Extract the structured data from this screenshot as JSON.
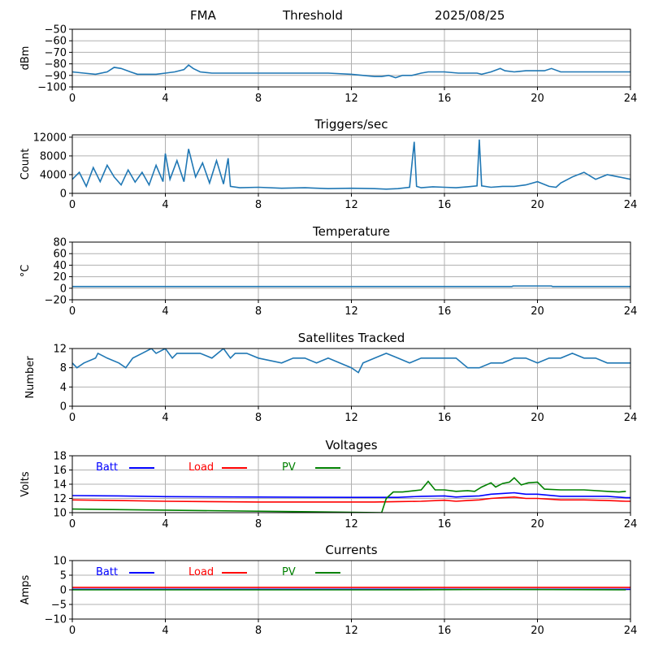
{
  "header": {
    "station": "FMA",
    "mode": "Threshold",
    "date": "2025/08/25"
  },
  "colors": {
    "trace": "#1f77b4",
    "grid": "#b0b0b0",
    "batt": "#0000ff",
    "load": "#ff0000",
    "pv": "#008000"
  },
  "chart_data": [
    {
      "type": "line",
      "title": "",
      "ylabel": "dBm",
      "xlim": [
        0,
        24
      ],
      "xticks": [
        0,
        4,
        8,
        12,
        16,
        20,
        24
      ],
      "ylim": [
        -100,
        -50
      ],
      "yticks": [
        -100,
        -90,
        -80,
        -70,
        -60,
        -50
      ],
      "grid": true,
      "series": [
        {
          "x": [
            0,
            0.5,
            1,
            1.5,
            1.8,
            2.1,
            2.5,
            2.8,
            3.2,
            3.6,
            4,
            4.4,
            4.8,
            5,
            5.2,
            5.5,
            6,
            7,
            8,
            9,
            10,
            11,
            12,
            12.5,
            13,
            13.3,
            13.6,
            13.9,
            14.2,
            14.6,
            15,
            15.3,
            16,
            16.6,
            17,
            17.4,
            17.6,
            18,
            18.4,
            18.6,
            19,
            19.5,
            20,
            20.3,
            20.6,
            21,
            22,
            23,
            24
          ],
          "y": [
            -87,
            -88,
            -89,
            -87,
            -83,
            -84,
            -87,
            -89,
            -89,
            -89,
            -88,
            -87,
            -85,
            -81,
            -84,
            -87,
            -88,
            -88,
            -88,
            -88,
            -88,
            -88,
            -89,
            -90,
            -91,
            -91,
            -90,
            -92,
            -90,
            -90,
            -88,
            -87,
            -87,
            -88,
            -88,
            -88,
            -89,
            -87,
            -84,
            -86,
            -87,
            -86,
            -86,
            -86,
            -84,
            -87,
            -87,
            -87,
            -87
          ]
        }
      ]
    },
    {
      "type": "line",
      "title": "Triggers/sec",
      "ylabel": "Count",
      "xlim": [
        0,
        24
      ],
      "xticks": [
        0,
        4,
        8,
        12,
        16,
        20,
        24
      ],
      "ylim": [
        0,
        12500
      ],
      "yticks": [
        0,
        4000,
        8000,
        12000
      ],
      "grid": true,
      "series": [
        {
          "x": [
            0,
            0.3,
            0.6,
            0.9,
            1.2,
            1.5,
            1.8,
            2.1,
            2.4,
            2.7,
            3,
            3.3,
            3.6,
            3.9,
            4,
            4.2,
            4.5,
            4.8,
            5,
            5.3,
            5.6,
            5.9,
            6.2,
            6.5,
            6.7,
            6.8,
            7.2,
            8,
            9,
            10,
            11,
            12,
            13,
            13.5,
            14,
            14.5,
            14.7,
            14.8,
            15,
            15.5,
            16,
            16.5,
            17,
            17.4,
            17.5,
            17.6,
            18,
            18.5,
            19,
            19.5,
            20,
            20.5,
            20.8,
            21,
            21.5,
            22,
            22.5,
            23,
            23.5,
            24
          ],
          "y": [
            3000,
            4500,
            1500,
            5500,
            2500,
            6000,
            3500,
            1800,
            5000,
            2400,
            4500,
            1800,
            6000,
            2500,
            8500,
            3000,
            7000,
            2500,
            9500,
            3500,
            6500,
            2200,
            7000,
            2000,
            7500,
            1500,
            1200,
            1300,
            1100,
            1200,
            1000,
            1100,
            1000,
            900,
            1000,
            1300,
            11000,
            1500,
            1200,
            1400,
            1300,
            1200,
            1400,
            1600,
            11500,
            1600,
            1300,
            1500,
            1500,
            1800,
            2500,
            1500,
            1300,
            2200,
            3500,
            4500,
            3000,
            4000,
            3500,
            3000
          ]
        }
      ]
    },
    {
      "type": "line",
      "title": "Temperature",
      "ylabel": "°C",
      "xlim": [
        0,
        24
      ],
      "xticks": [
        0,
        4,
        8,
        12,
        16,
        20,
        24
      ],
      "ylim": [
        -20,
        80
      ],
      "yticks": [
        -20,
        0,
        20,
        40,
        60,
        80
      ],
      "grid": true,
      "series": [
        {
          "x": [
            0,
            18.9,
            18.95,
            20.6,
            20.65,
            24
          ],
          "y": [
            3,
            3,
            4,
            4,
            3,
            3
          ]
        }
      ]
    },
    {
      "type": "line",
      "title": "Satellites Tracked",
      "ylabel": "Number",
      "xlim": [
        0,
        24
      ],
      "xticks": [
        0,
        4,
        8,
        12,
        16,
        20,
        24
      ],
      "ylim": [
        0,
        12
      ],
      "yticks": [
        0,
        4,
        8,
        12
      ],
      "grid": true,
      "series": [
        {
          "x": [
            0,
            0.2,
            0.5,
            1,
            1.1,
            1.5,
            2,
            2.3,
            2.6,
            3,
            3.4,
            3.6,
            4,
            4.3,
            4.5,
            5,
            5.5,
            6,
            6.5,
            6.8,
            7,
            7.5,
            8,
            9,
            9.5,
            10,
            10.5,
            11,
            11.5,
            12,
            12.3,
            12.5,
            13,
            13.5,
            14,
            14.5,
            15,
            15.5,
            16,
            16.5,
            17,
            17.5,
            18,
            18.5,
            19,
            19.5,
            20,
            20.5,
            21,
            21.5,
            22,
            22.5,
            23,
            23.5,
            24
          ],
          "y": [
            9,
            8,
            9,
            10,
            11,
            10,
            9,
            8,
            10,
            11,
            12,
            11,
            12,
            10,
            11,
            11,
            11,
            10,
            12,
            10,
            11,
            11,
            10,
            9,
            10,
            10,
            9,
            10,
            9,
            8,
            7,
            9,
            10,
            11,
            10,
            9,
            10,
            10,
            10,
            10,
            8,
            8,
            9,
            9,
            10,
            10,
            9,
            10,
            10,
            11,
            10,
            10,
            9,
            9,
            9
          ]
        }
      ]
    },
    {
      "type": "line",
      "title": "Voltages",
      "ylabel": "Volts",
      "xlim": [
        0,
        24
      ],
      "xticks": [
        0,
        4,
        8,
        12,
        16,
        20,
        24
      ],
      "ylim": [
        10,
        18
      ],
      "yticks": [
        10,
        12,
        14,
        16,
        18
      ],
      "grid": true,
      "legend": "top-left",
      "series": [
        {
          "name": "Batt",
          "color": "#0000ff",
          "x": [
            0,
            2,
            4,
            8,
            12,
            13,
            14,
            15,
            16,
            16.5,
            17,
            17.5,
            18,
            18.5,
            19,
            19.5,
            20,
            21,
            22,
            23,
            23.8,
            24
          ],
          "y": [
            12.4,
            12.35,
            12.25,
            12.2,
            12.15,
            12.15,
            12.15,
            12.3,
            12.35,
            12.2,
            12.3,
            12.35,
            12.6,
            12.7,
            12.8,
            12.6,
            12.6,
            12.3,
            12.3,
            12.3,
            12.1,
            12.1
          ]
        },
        {
          "name": "Load",
          "color": "#ff0000",
          "x": [
            0,
            2,
            4,
            8,
            12,
            13,
            14,
            15,
            16,
            16.5,
            17,
            17.5,
            18,
            18.5,
            19,
            19.5,
            20,
            21,
            22,
            23,
            23.8,
            24
          ],
          "y": [
            11.8,
            11.7,
            11.6,
            11.5,
            11.5,
            11.5,
            11.55,
            11.6,
            11.75,
            11.6,
            11.7,
            11.8,
            12.0,
            12.1,
            12.2,
            12.0,
            12.0,
            11.8,
            11.8,
            11.7,
            11.6,
            11.6
          ]
        },
        {
          "name": "PV",
          "color": "#008000",
          "x": [
            0,
            13.3,
            13.5,
            13.8,
            14.2,
            15,
            15.3,
            15.6,
            16,
            16.5,
            17,
            17.3,
            17.6,
            18,
            18.2,
            18.5,
            18.8,
            19,
            19.3,
            19.6,
            20,
            20.3,
            21,
            22,
            23,
            23.5,
            23.8
          ],
          "y": [
            10.5,
            10.0,
            12.0,
            12.9,
            12.9,
            13.2,
            14.4,
            13.2,
            13.2,
            13.0,
            13.1,
            13.0,
            13.6,
            14.2,
            13.6,
            14.1,
            14.3,
            14.9,
            13.9,
            14.2,
            14.3,
            13.3,
            13.2,
            13.2,
            13.0,
            12.9,
            13.0
          ]
        }
      ]
    },
    {
      "type": "line",
      "title": "Currents",
      "ylabel": "Amps",
      "xlim": [
        0,
        24
      ],
      "xticks": [
        0,
        4,
        8,
        12,
        16,
        20,
        24
      ],
      "ylim": [
        -10,
        10
      ],
      "yticks": [
        -10,
        -5,
        0,
        5,
        10
      ],
      "grid": true,
      "legend": "top-left",
      "series": [
        {
          "name": "Batt",
          "color": "#0000ff",
          "x": [
            0,
            24
          ],
          "y": [
            0.2,
            0.2
          ]
        },
        {
          "name": "Load",
          "color": "#ff0000",
          "x": [
            0,
            24
          ],
          "y": [
            0.8,
            0.8
          ]
        },
        {
          "name": "PV",
          "color": "#008000",
          "x": [
            0,
            13.5,
            18,
            19,
            23.8
          ],
          "y": [
            0,
            0,
            0.1,
            0.1,
            0
          ]
        }
      ]
    }
  ]
}
